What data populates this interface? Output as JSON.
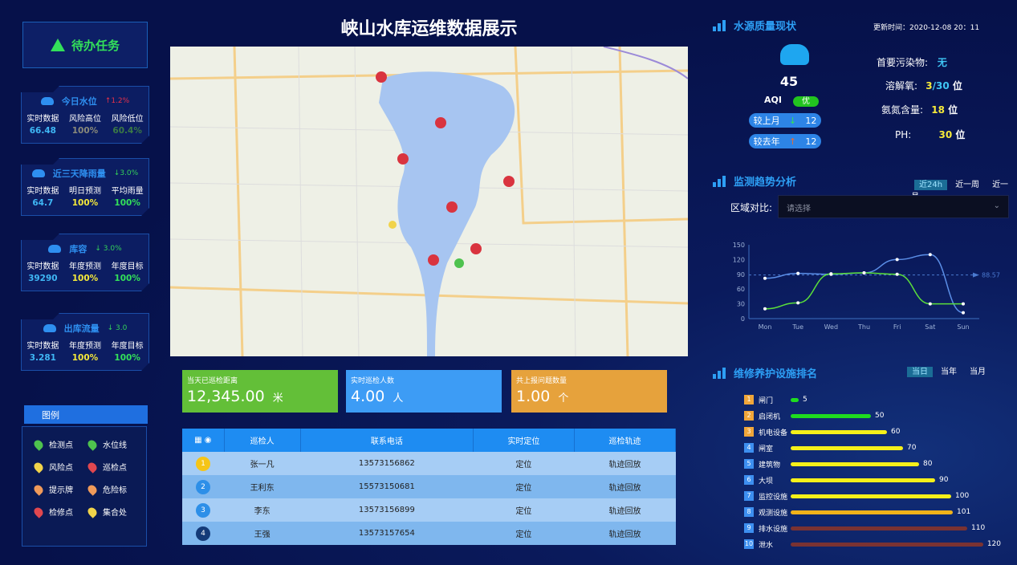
{
  "title": "峡山水库运维数据展示",
  "task": {
    "label": "待办任务"
  },
  "cards": [
    {
      "title": "今日水位",
      "trend": "↑1.2%",
      "trend_color": "#e8314a",
      "labels": [
        "实时数据",
        "风险高位",
        "风险低位"
      ],
      "values": [
        "66.48",
        "100%",
        "60.4%"
      ],
      "value_colors": [
        "#3fb7f5",
        "#8a8a7a",
        "#3b7a45"
      ]
    },
    {
      "title": "近三天降雨量",
      "trend": "↓3.0%",
      "trend_color": "#33d05a",
      "labels": [
        "实时数据",
        "明日预测",
        "平均雨量"
      ],
      "values": [
        "64.7",
        "100%",
        "100%"
      ],
      "value_colors": [
        "#3fb7f5",
        "#f5e93a",
        "#33e05a"
      ]
    },
    {
      "title": "库容",
      "trend": "↓ 3.0%",
      "trend_color": "#33d05a",
      "labels": [
        "实时数据",
        "年度预测",
        "年度目标"
      ],
      "values": [
        "39290",
        "100%",
        "100%"
      ],
      "value_colors": [
        "#3fb7f5",
        "#f5e93a",
        "#33e05a"
      ]
    },
    {
      "title": "出库流量",
      "trend": "↓ 3.0",
      "trend_color": "#33d05a",
      "labels": [
        "实时数据",
        "年度预测",
        "年度目标"
      ],
      "values": [
        "3.281",
        "100%",
        "100%"
      ],
      "value_colors": [
        "#3fb7f5",
        "#f5e93a",
        "#33e05a"
      ]
    }
  ],
  "legend": {
    "title": "图例",
    "items": [
      {
        "label": "检测点",
        "color": "#4ec24e"
      },
      {
        "label": "水位线",
        "color": "#4ec24e"
      },
      {
        "label": "风险点",
        "color": "#f1d34a"
      },
      {
        "label": "巡检点",
        "color": "#e0474f"
      },
      {
        "label": "提示牌",
        "color": "#f09a5a"
      },
      {
        "label": "危险标",
        "color": "#f09a5a"
      },
      {
        "label": "检修点",
        "color": "#e0474f"
      },
      {
        "label": "集合处",
        "color": "#f1d34a"
      }
    ]
  },
  "stats": [
    {
      "label": "当天已巡检距离",
      "value": "12,345.00",
      "unit": "米",
      "color": "#63bf38"
    },
    {
      "label": "实时巡检人数",
      "value": "4.00",
      "unit": "人",
      "color": "#3d9cf5"
    },
    {
      "label": "共上报问题数量",
      "value": "1.00",
      "unit": "个",
      "color": "#e6a23c"
    }
  ],
  "table": {
    "headers": [
      "巡检人",
      "联系电话",
      "实时定位",
      "巡检轨迹"
    ],
    "rows": [
      {
        "num": "1",
        "name": "张一凡",
        "phone": "13573156862",
        "loc": "定位",
        "track": "轨迹回放",
        "color": "#f5c518"
      },
      {
        "num": "2",
        "name": "王利东",
        "phone": "15573150681",
        "loc": "定位",
        "track": "轨迹回放",
        "color": "#2d8fe8"
      },
      {
        "num": "3",
        "name": "李东",
        "phone": "13573156899",
        "loc": "定位",
        "track": "轨迹回放",
        "color": "#2d8fe8"
      },
      {
        "num": "4",
        "name": "王强",
        "phone": "13573157654",
        "loc": "定位",
        "track": "轨迹回放",
        "color": "#143a78"
      }
    ]
  },
  "quality": {
    "title": "水源质量现状",
    "update_label": "更新时间：",
    "update_time": "2020-12-08 20：11",
    "aqi": "45",
    "aqi_label": "AQI",
    "aqi_level": "优",
    "vs_month_label": "较上月",
    "vs_month": "12",
    "vs_year_label": "较去年",
    "vs_year": "12",
    "pollutant_label": "首要污染物:",
    "pollutant": "无",
    "oxygen_label": "溶解氧:",
    "oxygen_a": "3",
    "oxygen_b": "/30",
    "ammonia_label": "氨氮含量:",
    "ammonia": "18",
    "ph_label": "PH:",
    "ph": "30",
    "unit": "位"
  },
  "trend": {
    "title": "监测趋势分析",
    "tabs": [
      "近24h",
      "近一周",
      "近一月"
    ],
    "active_tab": 0,
    "compare_label": "区域对比:",
    "select_placeholder": "请选择"
  },
  "chart_data": {
    "type": "line",
    "categories": [
      "Mon",
      "Tue",
      "Wed",
      "Thu",
      "Fri",
      "Sat",
      "Sun"
    ],
    "ylim": [
      0,
      150
    ],
    "yticks": [
      0,
      30,
      60,
      90,
      120,
      150
    ],
    "series": [
      {
        "values": [
          82,
          92,
          90,
          93,
          120,
          130,
          12
        ],
        "color": "#5b8fe8"
      },
      {
        "values": [
          20,
          32,
          91,
          93,
          90,
          30,
          30
        ],
        "color": "#5be03a"
      }
    ],
    "markline": {
      "value": 88.57,
      "label": "88.57"
    }
  },
  "ranking": {
    "title": "维修养护设施排名",
    "tabs": [
      "当日",
      "当年",
      "当月"
    ],
    "active_tab": 0,
    "max": 120,
    "items": [
      {
        "rank": "1",
        "name": "闸门",
        "value": 5,
        "color": "#1fdc1f"
      },
      {
        "rank": "2",
        "name": "启闭机",
        "value": 50,
        "color": "#1fdc1f"
      },
      {
        "rank": "3",
        "name": "机电设备",
        "value": 60,
        "color": "#f5f01a"
      },
      {
        "rank": "4",
        "name": "闸室",
        "value": 70,
        "color": "#f5f01a"
      },
      {
        "rank": "5",
        "name": "建筑物",
        "value": 80,
        "color": "#f5f01a"
      },
      {
        "rank": "6",
        "name": "大坝",
        "value": 90,
        "color": "#f5f01a"
      },
      {
        "rank": "7",
        "name": "监控设施",
        "value": 100,
        "color": "#f5f01a"
      },
      {
        "rank": "8",
        "name": "观测设施",
        "value": 101,
        "color": "#f0b21a"
      },
      {
        "rank": "9",
        "name": "排水设施",
        "value": 110,
        "color": "#7a3232"
      },
      {
        "rank": "10",
        "name": "泄水",
        "value": 120,
        "color": "#7a3232"
      }
    ]
  }
}
